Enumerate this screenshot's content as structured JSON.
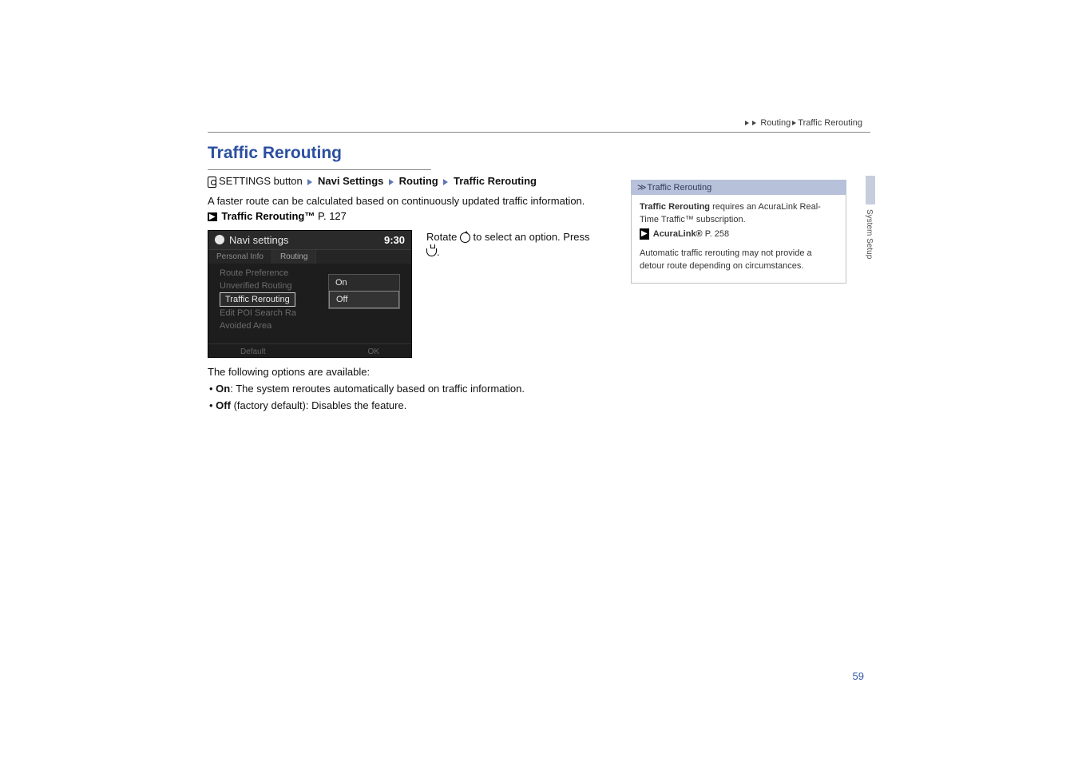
{
  "breadcrumb": {
    "level1": "Routing",
    "level2": "Traffic Rerouting"
  },
  "section": {
    "title": "Traffic Rerouting"
  },
  "navpath": {
    "button": "SETTINGS button",
    "p1": "Navi Settings",
    "p2": "Routing",
    "p3": "Traffic Rerouting"
  },
  "intro": {
    "line1": "A faster route can be calculated based on continuously updated traffic information.",
    "xref_label": "Traffic Rerouting™",
    "xref_page": "P. 127"
  },
  "screen": {
    "title": "Navi settings",
    "clock": "9:30",
    "tabs": {
      "t1": "Personal Info",
      "t2": "Routing"
    },
    "items": {
      "i1": "Route Preference",
      "i2": "Unverified Routing",
      "i3": "Traffic Rerouting",
      "i4": "Edit POI Search Ra",
      "i5": "Avoided Area"
    },
    "opts": {
      "on": "On",
      "off": "Off"
    },
    "footer": {
      "left": "Default",
      "right": "OK"
    }
  },
  "instruction": {
    "pre": "Rotate ",
    "mid": " to select an option. Press ",
    "post": "."
  },
  "options": {
    "label": "The following options are available:",
    "on_name": "On",
    "on_desc": ": The system reroutes automatically based on traffic information.",
    "off_name": "Off",
    "off_desc": " (factory default): Disables the feature."
  },
  "sidebar": {
    "header": "Traffic Rerouting",
    "p1a": "Traffic Rerouting",
    "p1b": " requires an AcuraLink Real-Time Traffic™ subscription.",
    "xref_label": "AcuraLink®",
    "xref_page": "P. 258",
    "p2": "Automatic traffic rerouting may not provide a detour route depending on circumstances."
  },
  "margin": {
    "tab": "System Setup"
  },
  "page_number": "59",
  "colors": {
    "title_blue": "#2b4fa0",
    "sidebar_head_bg": "#b7c2da",
    "sidebar_head_text": "#33395a",
    "page_num": "#3257a6"
  }
}
